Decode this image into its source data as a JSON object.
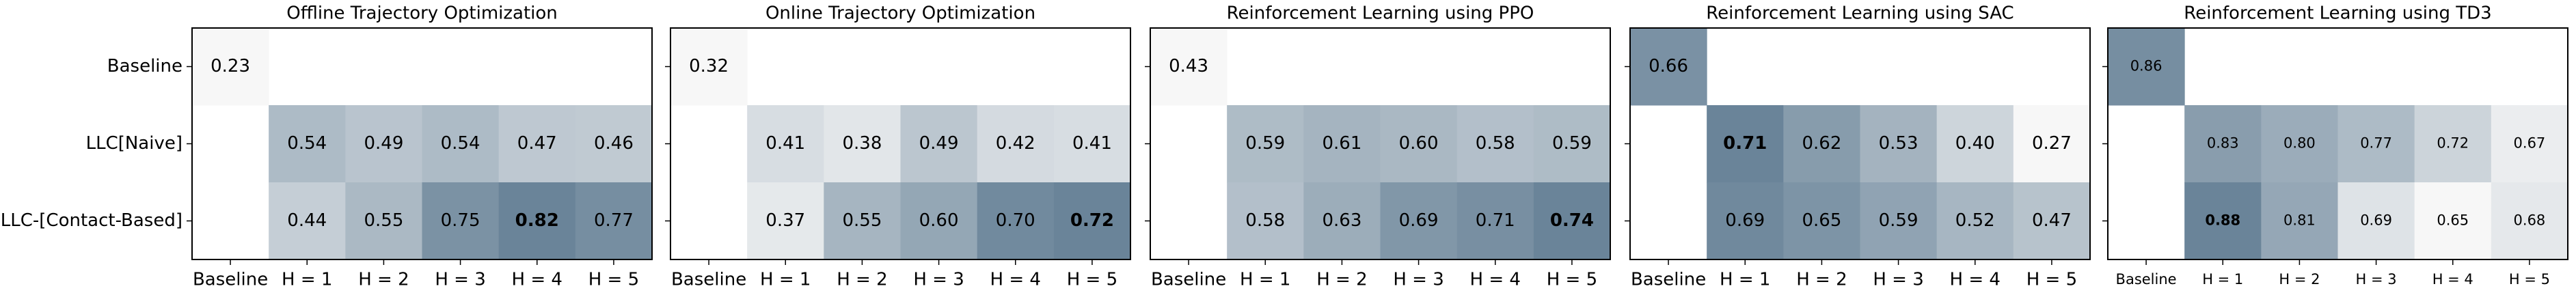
{
  "chart_data": [
    {
      "type": "heatmap",
      "title": "Offline Trajectory Optimization",
      "y_categories": [
        "Baseline",
        "LLC[Naive]",
        "LLC-[Contact-Based]"
      ],
      "categories": [
        "Baseline",
        "H = 1",
        "H = 2",
        "H = 3",
        "H = 4",
        "H = 5"
      ],
      "values": [
        [
          0.23,
          null,
          null,
          null,
          null,
          null
        ],
        [
          null,
          0.54,
          0.49,
          0.54,
          0.47,
          0.46
        ],
        [
          null,
          0.44,
          0.55,
          0.75,
          0.82,
          0.77
        ]
      ],
      "value_labels": [
        [
          "0.23",
          null,
          null,
          null,
          null,
          null
        ],
        [
          null,
          "0.54",
          "0.49",
          "0.54",
          "0.47",
          "0.46"
        ],
        [
          null,
          "0.44",
          "0.55",
          "0.75",
          "0.82",
          "0.77"
        ]
      ],
      "colormap": [
        "#f7f7f7",
        "#6a8499"
      ]
    },
    {
      "type": "heatmap",
      "title": "Online Trajectory Optimization",
      "categories": [
        "Baseline",
        "H = 1",
        "H = 2",
        "H = 3",
        "H = 4",
        "H = 5"
      ],
      "values": [
        [
          0.32,
          null,
          null,
          null,
          null,
          null
        ],
        [
          null,
          0.41,
          0.38,
          0.49,
          0.42,
          0.41
        ],
        [
          null,
          0.37,
          0.55,
          0.6,
          0.7,
          0.72
        ]
      ],
      "value_labels": [
        [
          "0.32",
          null,
          null,
          null,
          null,
          null
        ],
        [
          null,
          "0.41",
          "0.38",
          "0.49",
          "0.42",
          "0.41"
        ],
        [
          null,
          "0.37",
          "0.55",
          "0.60",
          "0.70",
          "0.72"
        ]
      ],
      "colormap": [
        "#f7f7f7",
        "#6a8499"
      ]
    },
    {
      "type": "heatmap",
      "title": "Reinforcement Learning using PPO",
      "categories": [
        "Baseline",
        "H = 1",
        "H = 2",
        "H = 3",
        "H = 4",
        "H = 5"
      ],
      "values": [
        [
          0.43,
          null,
          null,
          null,
          null,
          null
        ],
        [
          null,
          0.59,
          0.61,
          0.6,
          0.58,
          0.59
        ],
        [
          null,
          0.58,
          0.63,
          0.69,
          0.71,
          0.74
        ]
      ],
      "value_labels": [
        [
          "0.43",
          null,
          null,
          null,
          null,
          null
        ],
        [
          null,
          "0.59",
          "0.61",
          "0.60",
          "0.58",
          "0.59"
        ],
        [
          null,
          "0.58",
          "0.63",
          "0.69",
          "0.71",
          "0.74"
        ]
      ],
      "colormap": [
        "#f7f7f7",
        "#6a8499"
      ]
    },
    {
      "type": "heatmap",
      "title": "Reinforcement Learning using SAC",
      "categories": [
        "Baseline",
        "H = 1",
        "H = 2",
        "H = 3",
        "H = 4",
        "H = 5"
      ],
      "values": [
        [
          0.66,
          null,
          null,
          null,
          null,
          null
        ],
        [
          null,
          0.71,
          0.62,
          0.53,
          0.4,
          0.27
        ],
        [
          null,
          0.69,
          0.65,
          0.59,
          0.52,
          0.47
        ]
      ],
      "value_labels": [
        [
          "0.66",
          null,
          null,
          null,
          null,
          null
        ],
        [
          null,
          "0.71",
          "0.62",
          "0.53",
          "0.40",
          "0.27"
        ],
        [
          null,
          "0.69",
          "0.65",
          "0.59",
          "0.52",
          "0.47"
        ]
      ],
      "colormap": [
        "#f7f7f7",
        "#6a8499"
      ]
    },
    {
      "type": "heatmap",
      "title": "Reinforcement Learning using TD3",
      "categories": [
        "Baseline",
        "H = 1",
        "H = 2",
        "H = 3",
        "H = 4",
        "H = 5"
      ],
      "values": [
        [
          0.86,
          null,
          null,
          null,
          null,
          null
        ],
        [
          null,
          0.83,
          0.8,
          0.77,
          0.72,
          0.67
        ],
        [
          null,
          0.88,
          0.81,
          0.69,
          0.65,
          0.68
        ]
      ],
      "value_labels": [
        [
          "0.86",
          null,
          null,
          null,
          null,
          null
        ],
        [
          null,
          "0.83",
          "0.80",
          "0.77",
          "0.72",
          "0.67"
        ],
        [
          null,
          "0.88",
          "0.81",
          "0.69",
          "0.65",
          "0.68"
        ]
      ],
      "colormap": [
        "#f7f7f7",
        "#6a8499"
      ]
    }
  ]
}
